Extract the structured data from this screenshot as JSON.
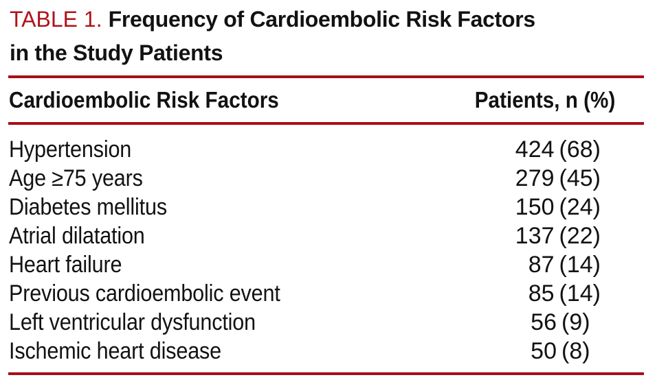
{
  "title": {
    "label": "TABLE 1.",
    "line1": "Frequency of Cardioembolic Risk Factors",
    "line2": "in the Study Patients"
  },
  "table": {
    "col1_header": "Cardioembolic Risk Factors",
    "col2_header": "Patients, n (%)",
    "rows": [
      {
        "factor": "Hypertension",
        "n": "424",
        "pct": "(68)"
      },
      {
        "factor": "Age ≥75 years",
        "n": "279",
        "pct": "(45)"
      },
      {
        "factor": "Diabetes mellitus",
        "n": "150",
        "pct": "(24)"
      },
      {
        "factor": "Atrial dilatation",
        "n": "137",
        "pct": "(22)"
      },
      {
        "factor": "Heart failure",
        "n": "87",
        "pct": "(14)"
      },
      {
        "factor": "Previous cardioembolic event",
        "n": "85",
        "pct": "(14)"
      },
      {
        "factor": "Left ventricular dysfunction",
        "n": "56",
        "pct": "(9)"
      },
      {
        "factor": "Ischemic heart disease",
        "n": "50",
        "pct": "(8)"
      }
    ]
  },
  "colors": {
    "rule_red": "#a80d18",
    "title_red": "#b0121a",
    "text_black": "#121212"
  },
  "chart_data": {
    "type": "table",
    "title": "TABLE 1. Frequency of Cardioembolic Risk Factors in the Study Patients",
    "columns": [
      "Cardioembolic Risk Factors",
      "Patients, n (%)"
    ],
    "categories": [
      "Hypertension",
      "Age ≥75 years",
      "Diabetes mellitus",
      "Atrial dilatation",
      "Heart failure",
      "Previous cardioembolic event",
      "Left ventricular dysfunction",
      "Ischemic heart disease"
    ],
    "series": [
      {
        "name": "Patients n",
        "values": [
          424,
          279,
          150,
          137,
          87,
          85,
          56,
          50
        ]
      },
      {
        "name": "Patients pct",
        "values": [
          68,
          45,
          24,
          22,
          14,
          14,
          9,
          8
        ]
      }
    ]
  }
}
